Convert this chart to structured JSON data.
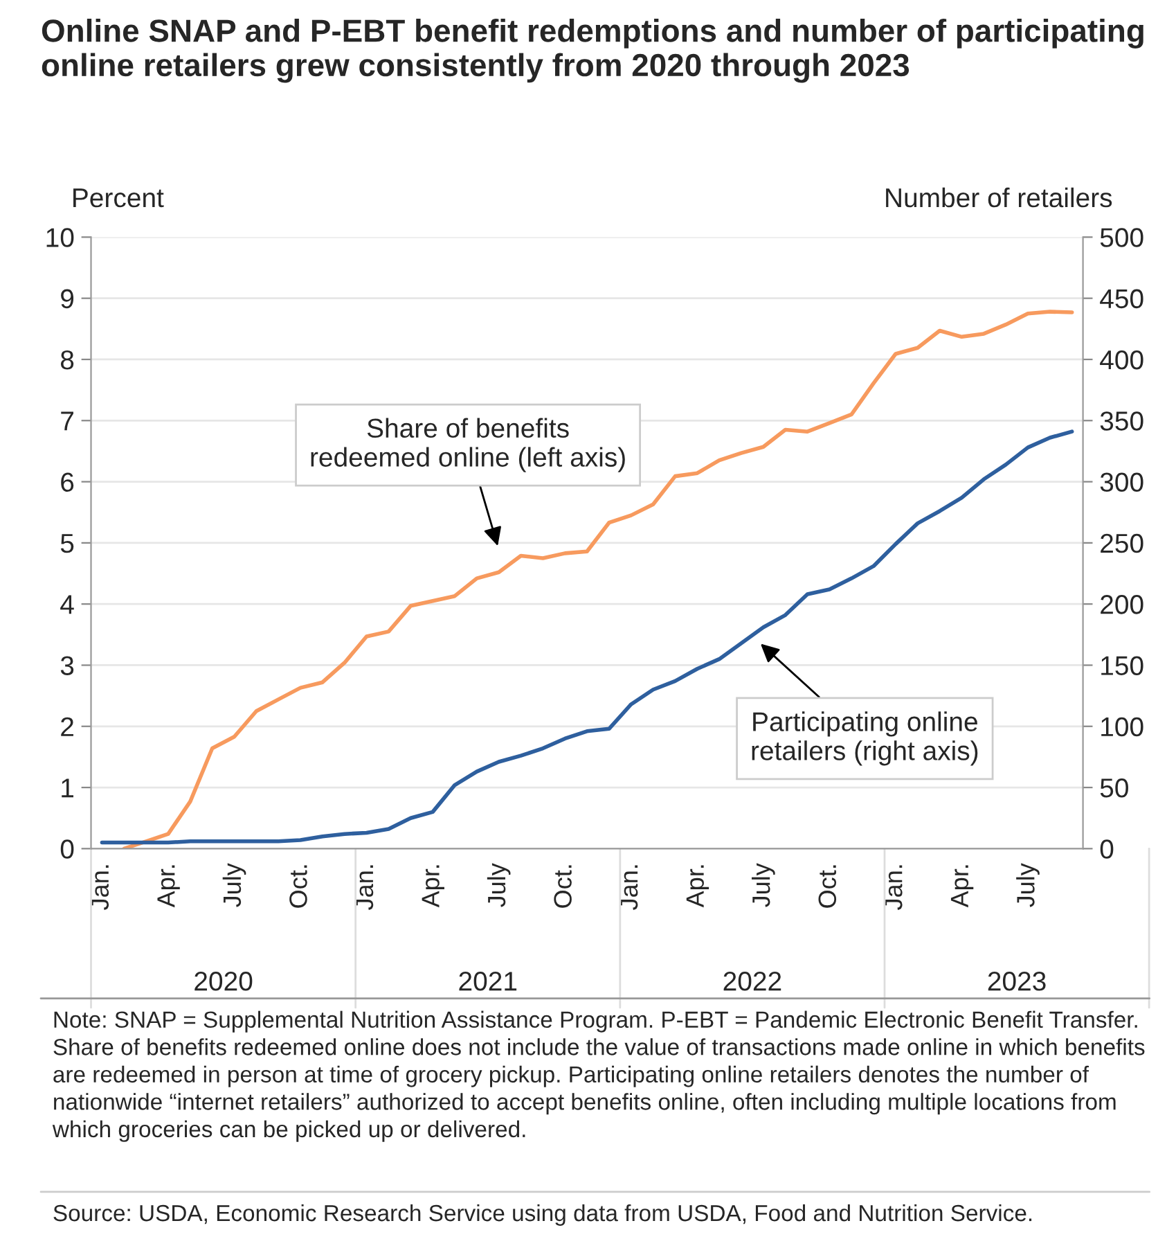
{
  "chart_data": {
    "type": "line",
    "title": "Online SNAP and P-EBT benefit redemptions and number of participating online retailers grew consistently from 2020 through 2023",
    "ylabel": "Percent",
    "y2label": "Number of retailers",
    "categories": [
      "Jan.",
      null,
      null,
      "Apr.",
      null,
      null,
      "July",
      null,
      null,
      "Oct.",
      null,
      null,
      "Jan.",
      null,
      null,
      "Apr.",
      null,
      null,
      "July",
      null,
      null,
      "Oct.",
      null,
      null,
      "Jan.",
      null,
      null,
      "Apr.",
      null,
      null,
      "July",
      null,
      null,
      "Oct.",
      null,
      null,
      "Jan.",
      null,
      null,
      "Apr.",
      null,
      null,
      "July",
      null,
      null
    ],
    "series": [
      {
        "color": "#f79a5e",
        "values": [
          null,
          0.0,
          0.12,
          0.24,
          0.77,
          1.64,
          1.83,
          2.25,
          2.44,
          2.63,
          2.72,
          3.04,
          3.47,
          3.55,
          3.97,
          4.05,
          4.13,
          4.42,
          4.52,
          4.79,
          4.75,
          4.83,
          4.86,
          5.33,
          5.45,
          5.63,
          6.09,
          6.14,
          6.35,
          6.47,
          6.57,
          6.85,
          6.82,
          6.96,
          7.1,
          7.61,
          8.09,
          8.19,
          8.47,
          8.37,
          8.42,
          8.57,
          8.75,
          8.78,
          8.77
        ]
      },
      {
        "color": "#2e5f9e",
        "axis": "y2",
        "values": [
          5,
          5,
          5,
          5,
          6,
          6,
          6,
          6,
          6,
          7,
          10,
          12,
          13,
          16,
          25,
          30,
          52,
          63,
          71,
          76,
          82,
          90,
          96,
          98,
          118,
          130,
          137,
          147,
          155,
          168,
          181,
          191,
          208,
          212,
          221,
          231,
          249,
          266,
          276,
          287,
          302,
          314,
          328,
          336,
          341
        ]
      }
    ],
    "ylim": [
      0,
      10
    ],
    "yticks": [
      0,
      1,
      2,
      3,
      4,
      5,
      6,
      7,
      8,
      9,
      10
    ],
    "y2lim": [
      0,
      500
    ],
    "y2ticks": [
      0,
      50,
      100,
      150,
      200,
      250,
      300,
      350,
      400,
      450,
      500
    ],
    "grid": "y",
    "legend": false,
    "line_style": "solid",
    "marker": "none",
    "annotations": [
      "Share of benefits\nredeemed online (left axis)",
      "Participating online\nretailers (right axis)",
      "2020",
      "2021",
      "2022",
      "2023",
      "Note: SNAP = Supplemental Nutrition Assistance Program. P-EBT = Pandemic Electronic Benefit Transfer. Share of benefits redeemed online does not include the value of transactions made online in which benefits are redeemed in person at time of grocery pickup. Participating online retailers denotes the number of nationwide “internet retailers” authorized to accept benefits online, often including multiple locations from which groceries can be picked up or delivered.",
      "Source: USDA, Economic Research Service using data from USDA, Food and Nutrition Service."
    ]
  }
}
